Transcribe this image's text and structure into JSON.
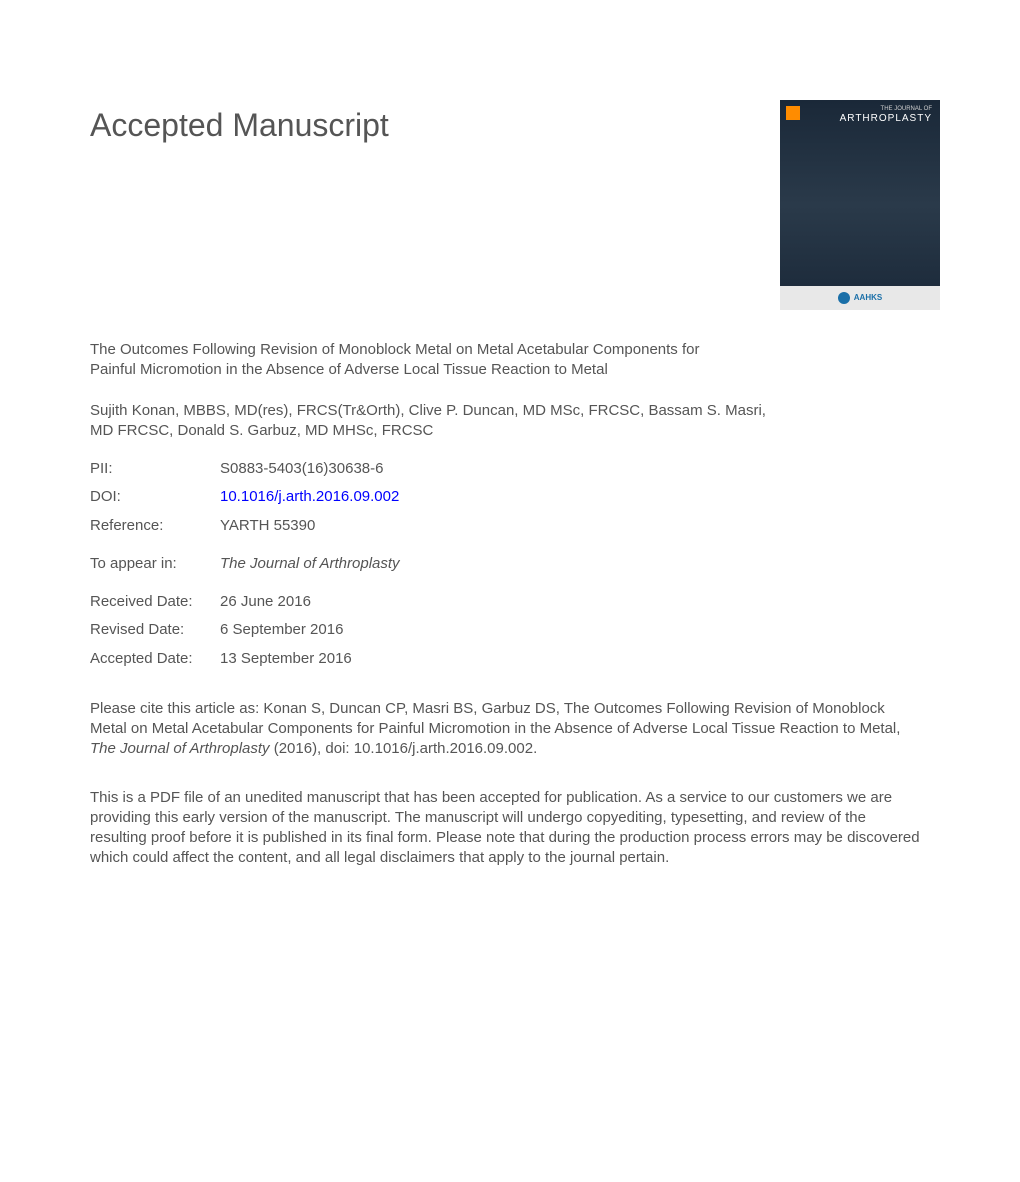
{
  "heading": "Accepted Manuscript",
  "journal_cover": {
    "top_label": "THE JOURNAL OF",
    "name": "ARTHROPLASTY",
    "society": "AAHKS",
    "background_color": "#1a2838",
    "text_color": "#ffffff",
    "bottom_bar_color": "#e8e8e8",
    "logo_color": "#1a6fa8"
  },
  "title": "The Outcomes Following Revision of Monoblock Metal on Metal Acetabular Components for Painful Micromotion in the Absence of Adverse Local Tissue Reaction to Metal",
  "authors": "Sujith Konan, MBBS, MD(res), FRCS(Tr&Orth), Clive P. Duncan, MD MSc, FRCSC, Bassam S. Masri, MD FRCSC, Donald S. Garbuz, MD MHSc, FRCSC",
  "meta": {
    "pii_label": "PII:",
    "pii_value": "S0883-5403(16)30638-6",
    "doi_label": "DOI:",
    "doi_value": "10.1016/j.arth.2016.09.002",
    "ref_label": "Reference:",
    "ref_value": "YARTH 55390"
  },
  "appear": {
    "label": "To appear in:",
    "value": "The Journal of Arthroplasty"
  },
  "dates": {
    "received_label": "Received Date:",
    "received_value": "26 June 2016",
    "revised_label": "Revised Date:",
    "revised_value": "6 September 2016",
    "accepted_label": "Accepted Date:",
    "accepted_value": "13 September 2016"
  },
  "citation": {
    "prefix": "Please cite this article as: Konan S, Duncan CP, Masri BS, Garbuz DS, The Outcomes Following Revision of Monoblock Metal on Metal Acetabular Components for Painful Micromotion in the Absence of Adverse Local Tissue Reaction to Metal, ",
    "journal": "The Journal of Arthroplasty",
    "suffix": " (2016), doi: 10.1016/j.arth.2016.09.002."
  },
  "disclaimer": "This is a PDF file of an unedited manuscript that has been accepted for publication. As a service to our customers we are providing this early version of the manuscript. The manuscript will undergo copyediting, typesetting, and review of the resulting proof before it is published in its final form. Please note that during the production process errors may be discovered which could affect the content, and all legal disclaimers that apply to the journal pertain.",
  "colors": {
    "text": "#555555",
    "link": "#0000ff",
    "background": "#ffffff"
  },
  "typography": {
    "heading_fontsize": 32,
    "body_fontsize": 15,
    "font_family": "Arial"
  }
}
